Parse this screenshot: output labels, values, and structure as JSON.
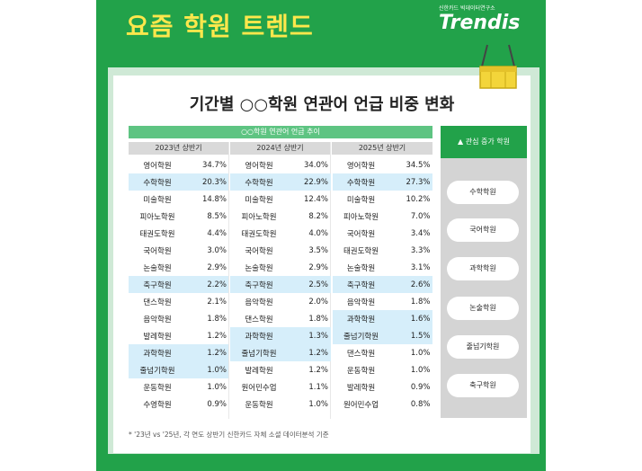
{
  "header": {
    "title": "요즘 학원 트렌드",
    "brand_sub": "신한카드 빅데이터연구소",
    "brand_name": "Trendis"
  },
  "card": {
    "title": "기간별 ○○학원 연관어 언급 비중 변화"
  },
  "table": {
    "band_label": "○○학원 연관어 언급 추이",
    "columns": [
      {
        "label": "2023년 상반기",
        "rows": [
          {
            "name": "영어학원",
            "pct": "34.7%",
            "hl": false
          },
          {
            "name": "수학학원",
            "pct": "20.3%",
            "hl": true
          },
          {
            "name": "미술학원",
            "pct": "14.8%",
            "hl": false
          },
          {
            "name": "피아노학원",
            "pct": "8.5%",
            "hl": false
          },
          {
            "name": "태권도학원",
            "pct": "4.4%",
            "hl": false
          },
          {
            "name": "국어학원",
            "pct": "3.0%",
            "hl": false
          },
          {
            "name": "논술학원",
            "pct": "2.9%",
            "hl": false
          },
          {
            "name": "축구학원",
            "pct": "2.2%",
            "hl": true
          },
          {
            "name": "댄스학원",
            "pct": "2.1%",
            "hl": false
          },
          {
            "name": "음악학원",
            "pct": "1.8%",
            "hl": false
          },
          {
            "name": "발레학원",
            "pct": "1.2%",
            "hl": false
          },
          {
            "name": "과학학원",
            "pct": "1.2%",
            "hl": true
          },
          {
            "name": "줄넘기학원",
            "pct": "1.0%",
            "hl": true
          },
          {
            "name": "운동학원",
            "pct": "1.0%",
            "hl": false
          },
          {
            "name": "수영학원",
            "pct": "0.9%",
            "hl": false
          }
        ]
      },
      {
        "label": "2024년 상반기",
        "rows": [
          {
            "name": "영어학원",
            "pct": "34.0%",
            "hl": false
          },
          {
            "name": "수학학원",
            "pct": "22.9%",
            "hl": true
          },
          {
            "name": "미술학원",
            "pct": "12.4%",
            "hl": false
          },
          {
            "name": "피아노학원",
            "pct": "8.2%",
            "hl": false
          },
          {
            "name": "태권도학원",
            "pct": "4.0%",
            "hl": false
          },
          {
            "name": "국어학원",
            "pct": "3.5%",
            "hl": false
          },
          {
            "name": "논술학원",
            "pct": "2.9%",
            "hl": false
          },
          {
            "name": "축구학원",
            "pct": "2.5%",
            "hl": true
          },
          {
            "name": "음악학원",
            "pct": "2.0%",
            "hl": false
          },
          {
            "name": "댄스학원",
            "pct": "1.8%",
            "hl": false
          },
          {
            "name": "과학학원",
            "pct": "1.3%",
            "hl": true
          },
          {
            "name": "줄넘기학원",
            "pct": "1.2%",
            "hl": true
          },
          {
            "name": "발레학원",
            "pct": "1.2%",
            "hl": false
          },
          {
            "name": "원어민수업",
            "pct": "1.1%",
            "hl": false
          },
          {
            "name": "운동학원",
            "pct": "1.0%",
            "hl": false
          }
        ]
      },
      {
        "label": "2025년 상반기",
        "rows": [
          {
            "name": "영어학원",
            "pct": "34.5%",
            "hl": false
          },
          {
            "name": "수학학원",
            "pct": "27.3%",
            "hl": true
          },
          {
            "name": "미술학원",
            "pct": "10.2%",
            "hl": false
          },
          {
            "name": "피아노학원",
            "pct": "7.0%",
            "hl": false
          },
          {
            "name": "국어학원",
            "pct": "3.4%",
            "hl": false
          },
          {
            "name": "태권도학원",
            "pct": "3.3%",
            "hl": false
          },
          {
            "name": "논술학원",
            "pct": "3.1%",
            "hl": false
          },
          {
            "name": "축구학원",
            "pct": "2.6%",
            "hl": true
          },
          {
            "name": "음악학원",
            "pct": "1.8%",
            "hl": false
          },
          {
            "name": "과학학원",
            "pct": "1.6%",
            "hl": true
          },
          {
            "name": "줄넘기학원",
            "pct": "1.5%",
            "hl": true
          },
          {
            "name": "댄스학원",
            "pct": "1.0%",
            "hl": false
          },
          {
            "name": "운동학원",
            "pct": "1.0%",
            "hl": false
          },
          {
            "name": "발레학원",
            "pct": "0.9%",
            "hl": false
          },
          {
            "name": "원어민수업",
            "pct": "0.8%",
            "hl": false
          }
        ]
      }
    ]
  },
  "panel": {
    "header": "▲ 관심 증가 학원",
    "items": [
      "수학학원",
      "국어학원",
      "과학학원",
      "논술학원",
      "줄넘기학원",
      "축구학원"
    ]
  },
  "footnote": "* '23년 vs '25년, 각 연도 상반기 신한카드 자체 소셜 데이터분석 기준",
  "colors": {
    "green": "#22a24a",
    "yellow": "#fde74c",
    "table_band": "#5ec482",
    "highlight": "#d6eefa",
    "panel": "#d4d4d4"
  }
}
